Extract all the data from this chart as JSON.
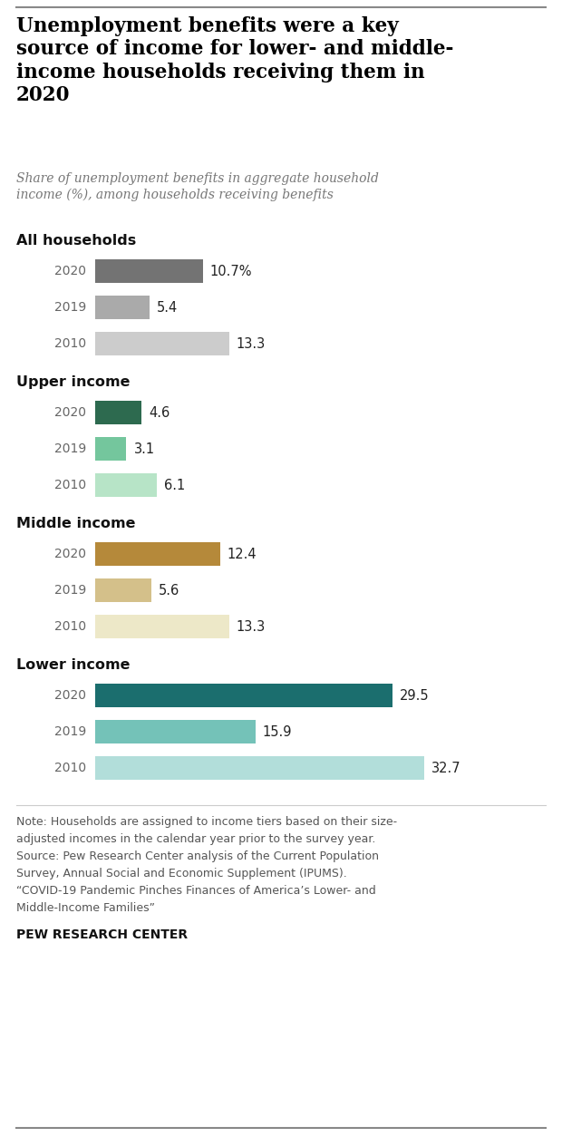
{
  "title": "Unemployment benefits were a key\nsource of income for lower- and middle-\nincome households receiving them in\n2020",
  "subtitle": "Share of unemployment benefits in aggregate household\nincome (%), among households receiving benefits",
  "groups": [
    {
      "label": "All households",
      "bars": [
        {
          "year": "2020",
          "value": 10.7,
          "color": "#737373",
          "label": "10.7%"
        },
        {
          "year": "2019",
          "value": 5.4,
          "color": "#aaaaaa",
          "label": "5.4"
        },
        {
          "year": "2010",
          "value": 13.3,
          "color": "#cccccc",
          "label": "13.3"
        }
      ]
    },
    {
      "label": "Upper income",
      "bars": [
        {
          "year": "2020",
          "value": 4.6,
          "color": "#2d6a4f",
          "label": "4.6"
        },
        {
          "year": "2019",
          "value": 3.1,
          "color": "#74c69d",
          "label": "3.1"
        },
        {
          "year": "2010",
          "value": 6.1,
          "color": "#b7e4c7",
          "label": "6.1"
        }
      ]
    },
    {
      "label": "Middle income",
      "bars": [
        {
          "year": "2020",
          "value": 12.4,
          "color": "#b5893a",
          "label": "12.4"
        },
        {
          "year": "2019",
          "value": 5.6,
          "color": "#d4c08a",
          "label": "5.6"
        },
        {
          "year": "2010",
          "value": 13.3,
          "color": "#ede8c8",
          "label": "13.3"
        }
      ]
    },
    {
      "label": "Lower income",
      "bars": [
        {
          "year": "2020",
          "value": 29.5,
          "color": "#1b6e6e",
          "label": "29.5"
        },
        {
          "year": "2019",
          "value": 15.9,
          "color": "#74c2b8",
          "label": "15.9"
        },
        {
          "year": "2010",
          "value": 32.7,
          "color": "#b2deda",
          "label": "32.7"
        }
      ]
    }
  ],
  "note_lines": [
    "Note: Households are assigned to income tiers based on their size-",
    "adjusted incomes in the calendar year prior to the survey year.",
    "Source: Pew Research Center analysis of the Current Population",
    "Survey, Annual Social and Economic Supplement (IPUMS).",
    "“COVID-19 Pandemic Pinches Finances of America’s Lower- and",
    "Middle-Income Families”"
  ],
  "source_label": "PEW RESEARCH CENTER",
  "xlim": [
    0,
    36
  ],
  "background_color": "#ffffff"
}
